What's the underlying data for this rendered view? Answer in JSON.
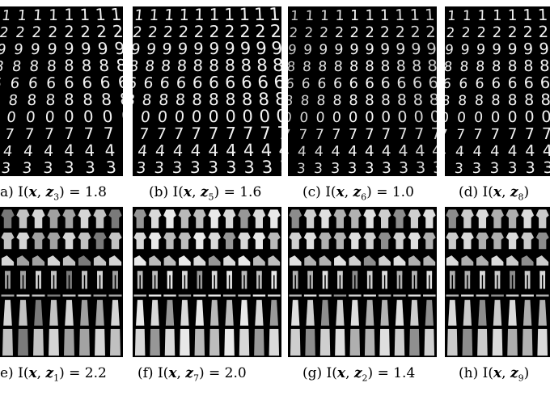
{
  "digit_rows": [
    "1",
    "2",
    "9",
    "8",
    "6",
    "8",
    "0",
    "7",
    "4",
    "3"
  ],
  "fashion_rows": [
    "tshirt",
    "shirt",
    "sneaker",
    "pant",
    "bag",
    "dress",
    "coat"
  ],
  "top_captions": [
    {
      "label": "a)",
      "sub": "3",
      "value": "1.8"
    },
    {
      "label": "(b)",
      "sub": "5",
      "value": "1.6"
    },
    {
      "label": "(c)",
      "sub": "6",
      "value": "1.0"
    },
    {
      "label": "(d)",
      "sub": "8",
      "value": ""
    }
  ],
  "bottom_captions": [
    {
      "label": "e)",
      "sub": "1",
      "value": "2.2"
    },
    {
      "label": "(f)",
      "sub": "7",
      "value": "2.0"
    },
    {
      "label": "(g)",
      "sub": "2",
      "value": "1.4"
    },
    {
      "label": "(h)",
      "sub": "9",
      "value": ""
    }
  ]
}
